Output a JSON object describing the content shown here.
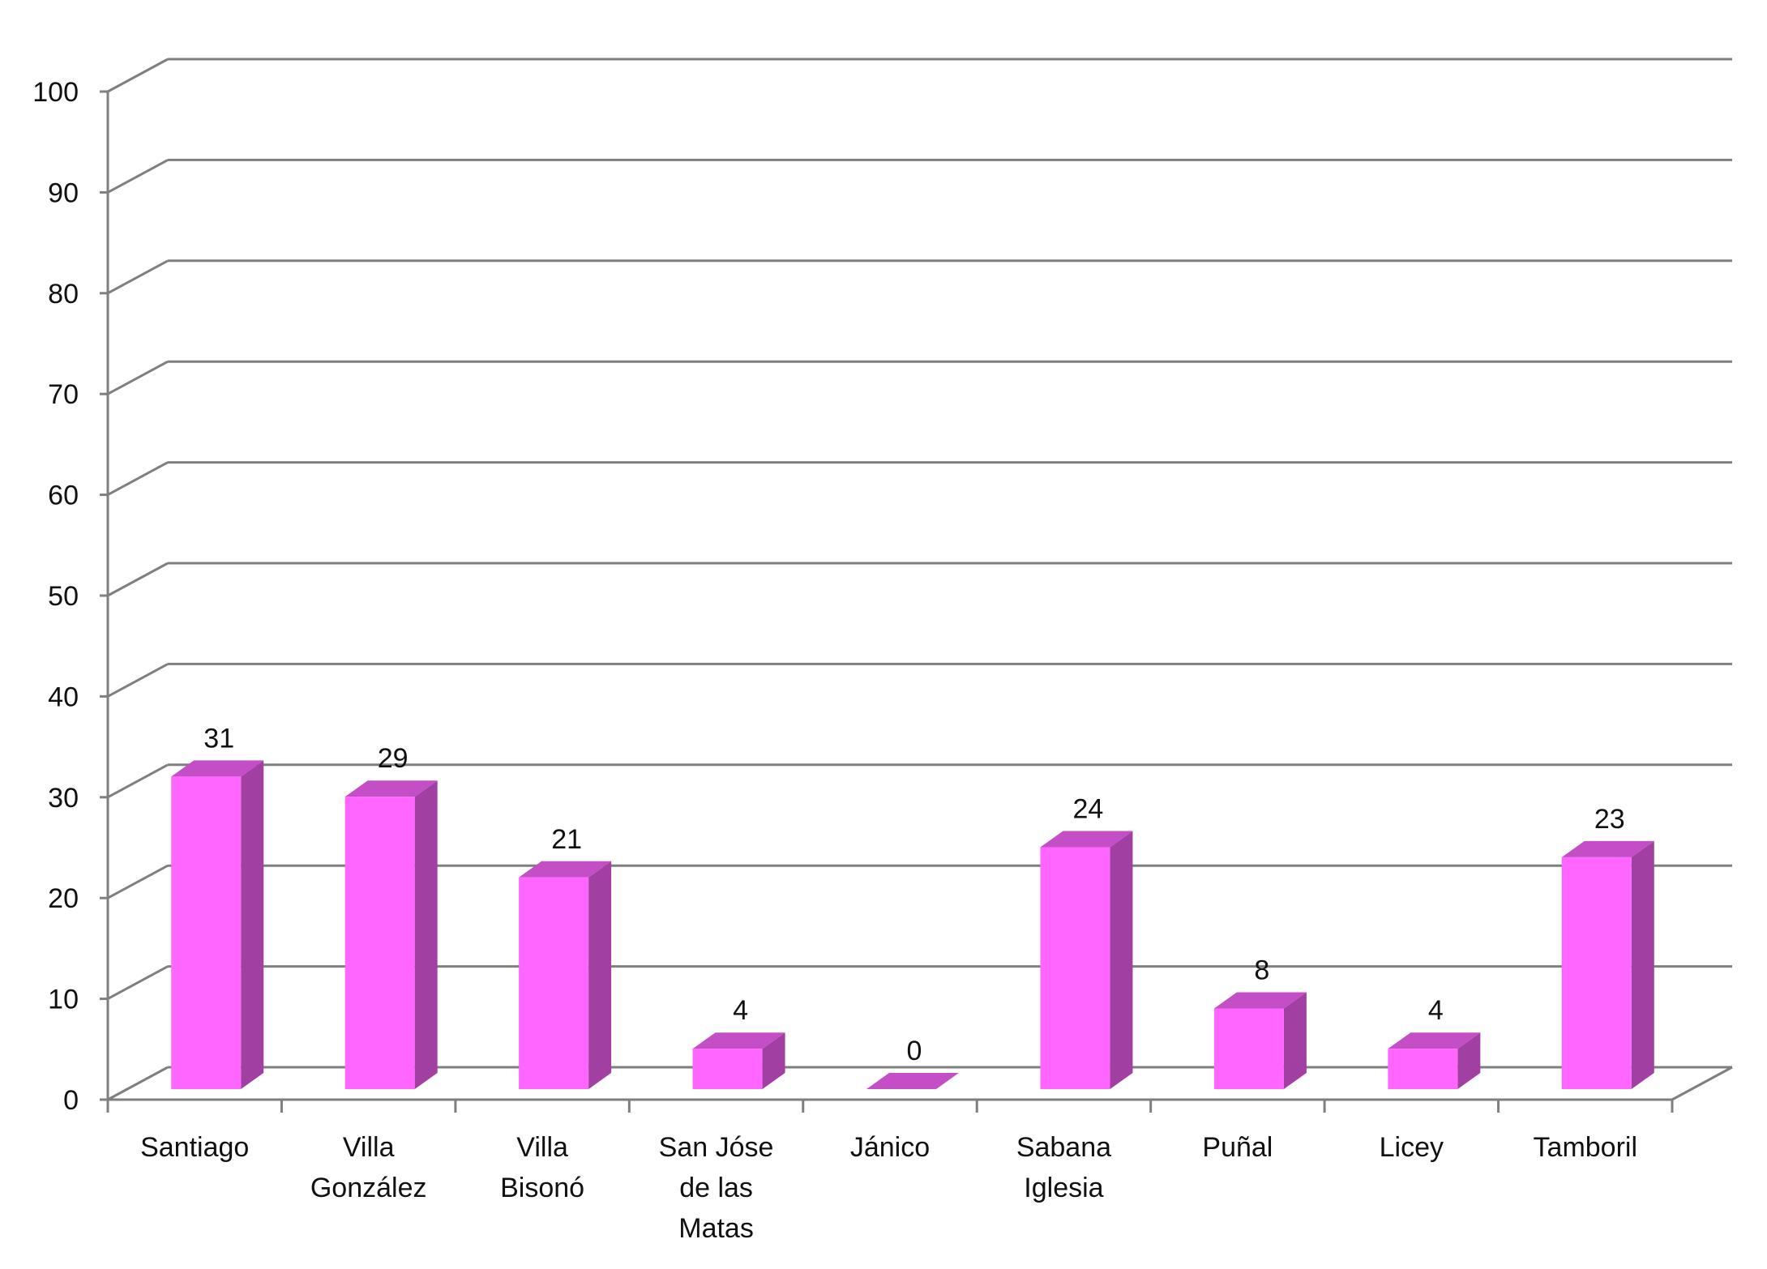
{
  "chart_data": {
    "type": "bar",
    "style": "3d-column",
    "title": "",
    "xlabel": "",
    "ylabel": "",
    "categories": [
      [
        "Santiago"
      ],
      [
        "Villa",
        "González"
      ],
      [
        "Villa",
        "Bisonó"
      ],
      [
        "San Jóse",
        "de las",
        "Matas"
      ],
      [
        "Jánico"
      ],
      [
        "Sabana",
        "Iglesia"
      ],
      [
        "Puñal"
      ],
      [
        "Licey"
      ],
      [
        "Tamboril"
      ]
    ],
    "values": [
      31,
      29,
      21,
      4,
      0,
      24,
      8,
      4,
      23
    ],
    "data_labels": [
      "31",
      "29",
      "21",
      "4",
      "0",
      "24",
      "8",
      "4",
      "23"
    ],
    "ylim": [
      0,
      100
    ],
    "yticks": [
      0,
      10,
      20,
      30,
      40,
      50,
      60,
      70,
      80,
      90,
      100
    ],
    "grid": true,
    "legend": "none",
    "colors": {
      "bar_front": "#ff66ff",
      "bar_side": "#a23fa3",
      "bar_top": "#c44ec6",
      "grid": "#7f7f7f",
      "text": "#111111"
    }
  }
}
